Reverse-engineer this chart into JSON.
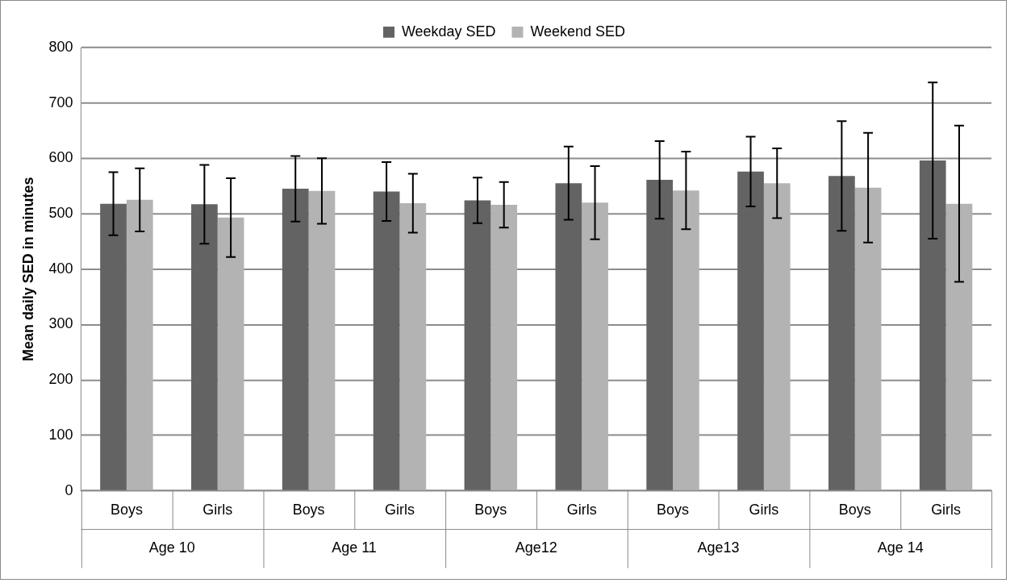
{
  "chart_data": {
    "type": "bar",
    "ylabel": "Mean daily SED in minutes",
    "categories": [
      "Boys",
      "Girls",
      "Boys",
      "Girls",
      "Boys",
      "Girls",
      "Boys",
      "Girls",
      "Boys",
      "Girls"
    ],
    "annotations": [
      "Age 10",
      "Age 11",
      "Age12",
      "Age13",
      "Age 14"
    ],
    "series": [
      {
        "name": "Weekday SED",
        "color": "#636363",
        "values": [
          518,
          517,
          545,
          540,
          524,
          555,
          561,
          576,
          568,
          596
        ],
        "errors": [
          [
            461,
            575
          ],
          [
            446,
            588
          ],
          [
            486,
            604
          ],
          [
            487,
            593
          ],
          [
            483,
            565
          ],
          [
            489,
            621
          ],
          [
            491,
            631
          ],
          [
            513,
            639
          ],
          [
            469,
            667
          ],
          [
            455,
            737
          ]
        ]
      },
      {
        "name": "Weekend SED",
        "color": "#b3b3b3",
        "values": [
          525,
          493,
          541,
          519,
          516,
          520,
          542,
          555,
          547,
          518
        ],
        "errors": [
          [
            468,
            582
          ],
          [
            422,
            564
          ],
          [
            482,
            600
          ],
          [
            466,
            572
          ],
          [
            475,
            557
          ],
          [
            454,
            586
          ],
          [
            472,
            612
          ],
          [
            492,
            618
          ],
          [
            448,
            646
          ],
          [
            377,
            659
          ]
        ]
      }
    ],
    "ylim": [
      0,
      800
    ],
    "yticks": [
      0,
      100,
      200,
      300,
      400,
      500,
      600,
      700,
      800
    ],
    "grid": "y",
    "legend": "top"
  }
}
